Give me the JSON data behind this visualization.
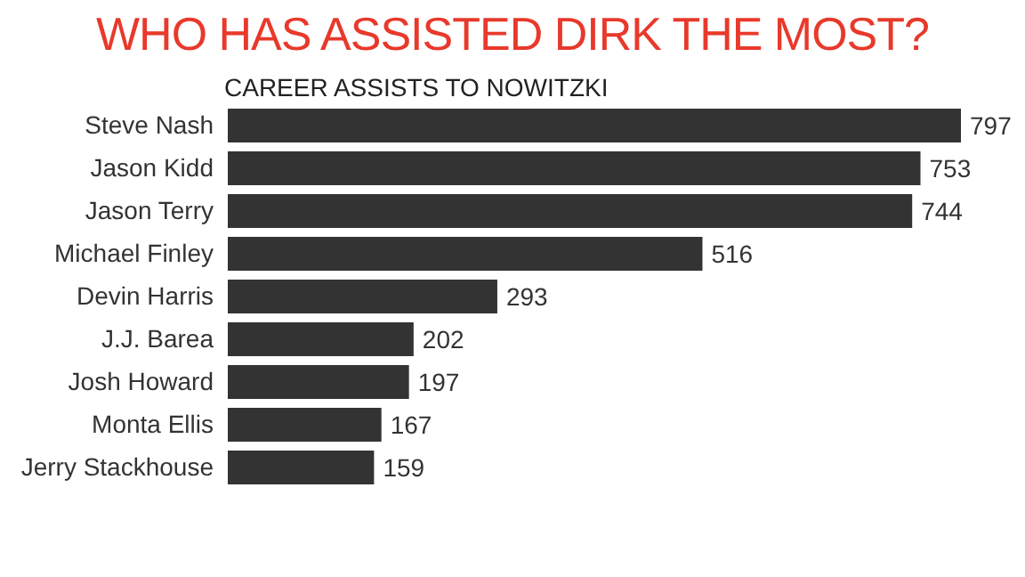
{
  "chart_data": {
    "type": "bar",
    "orientation": "horizontal",
    "title": "WHO HAS ASSISTED DIRK THE MOST?",
    "subtitle": "CAREER ASSISTS TO NOWITZKI",
    "categories": [
      "Steve Nash",
      "Jason Kidd",
      "Jason Terry",
      "Michael Finley",
      "Devin Harris",
      "J.J. Barea",
      "Josh Howard",
      "Monta Ellis",
      "Jerry Stackhouse"
    ],
    "values": [
      797,
      753,
      744,
      516,
      293,
      202,
      197,
      167,
      159
    ],
    "color": "#333333",
    "data_labels": true,
    "tick_labels": "y"
  }
}
